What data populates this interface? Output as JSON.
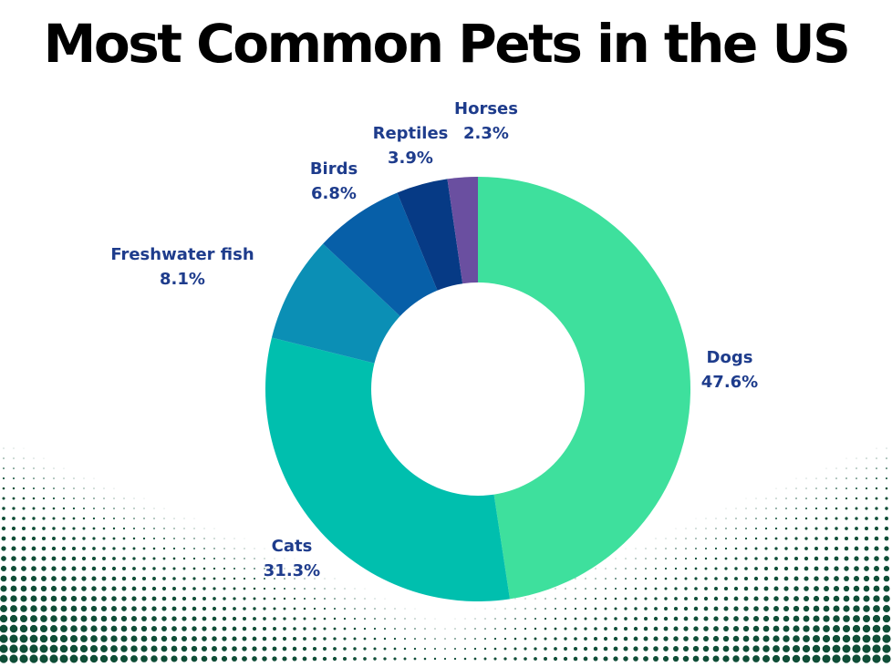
{
  "chart_data": {
    "type": "pie",
    "title": "Most Common Pets in the US",
    "categories": [
      "Dogs",
      "Cats",
      "Freshwater fish",
      "Birds",
      "Reptiles",
      "Horses"
    ],
    "values": [
      47.6,
      31.3,
      8.1,
      6.8,
      3.9,
      2.3
    ],
    "value_labels": [
      "47.6%",
      "31.3%",
      "8.1%",
      "6.8%",
      "3.9%",
      "2.3%"
    ],
    "colors": [
      "#3ee09d",
      "#00bfae",
      "#0b8fb5",
      "#075fa8",
      "#063a85",
      "#6a4fa0"
    ],
    "label_color": "#1e3c8c",
    "legend": "none"
  },
  "decoration": {
    "halftone_color": "#0e4d36"
  }
}
